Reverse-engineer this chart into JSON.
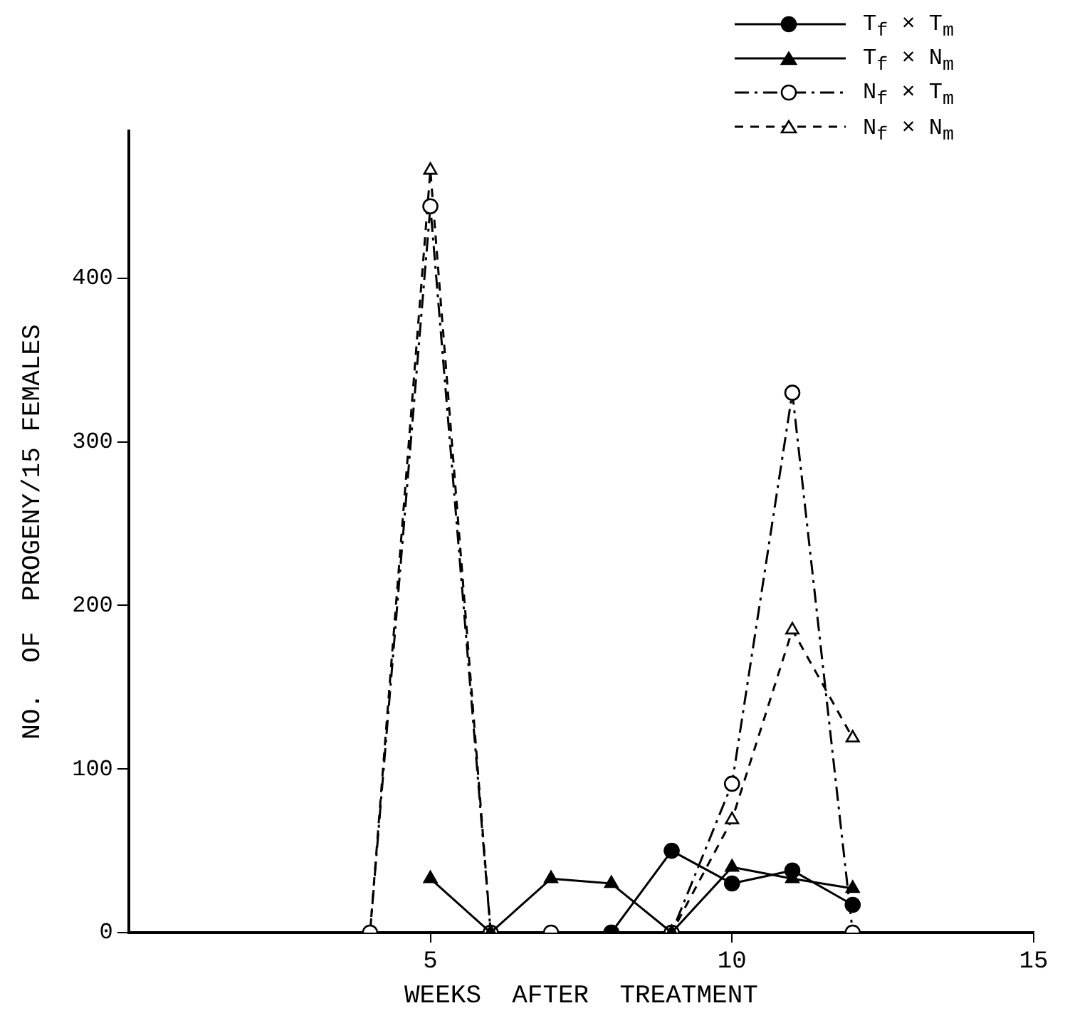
{
  "chart_data": {
    "type": "line",
    "xlabel": "WEEKS  AFTER  TREATMENT",
    "ylabel": "NO.  OF  PROGENY/15 FEMALES",
    "xlim": [
      0,
      15
    ],
    "xticks": [
      5,
      10,
      15
    ],
    "ylim": [
      0,
      490
    ],
    "yticks": [
      0,
      100,
      200,
      300,
      400
    ],
    "grid": false,
    "legend": "top right",
    "series": [
      {
        "name": "T$_{f}$ × T$_{m}$",
        "color": "#000000",
        "marker": "circle",
        "line_style": "solid",
        "x": [
          8,
          9,
          10,
          11,
          12
        ],
        "values": [
          0,
          50,
          30,
          38,
          17
        ]
      },
      {
        "name": "T$_{f}$ × N$_{m}$",
        "color": "#000000",
        "marker": "triangle",
        "line_style": "solid",
        "x": [
          5,
          6,
          7,
          8,
          9,
          10,
          11,
          12
        ],
        "values": [
          33,
          0,
          33,
          30,
          0,
          40,
          33,
          27
        ]
      },
      {
        "name": "N$_{f}$ × T$_{m}$",
        "color": "#000000",
        "marker": "circle",
        "line_style": "dashdot",
        "x": [
          4,
          5,
          6,
          7,
          8,
          9,
          10,
          11,
          12
        ],
        "values": [
          0,
          444,
          0,
          0,
          0,
          0,
          91,
          330,
          0
        ]
      },
      {
        "name": "N$_{f}$ × N$_{m}$",
        "color": "#000000",
        "marker": "triangle",
        "line_style": "dashed",
        "x": [
          4,
          5,
          6,
          9,
          10,
          11,
          12
        ],
        "values": [
          0,
          466,
          0,
          0,
          69,
          185,
          119
        ]
      }
    ]
  }
}
